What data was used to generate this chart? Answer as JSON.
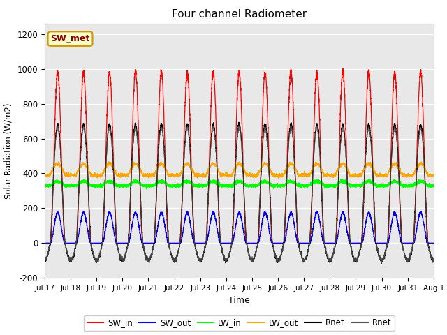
{
  "title": "Four channel Radiometer",
  "xlabel": "Time",
  "ylabel": "Solar Radiation (W/m2)",
  "ylim": [
    -200,
    1260
  ],
  "yticks": [
    -200,
    0,
    200,
    400,
    600,
    800,
    1000,
    1200
  ],
  "x_labels": [
    "Jul 17",
    "Jul 18",
    "Jul 19",
    "Jul 20",
    "Jul 21",
    "Jul 22",
    "Jul 23",
    "Jul 24",
    "Jul 25",
    "Jul 26",
    "Jul 27",
    "Jul 28",
    "Jul 29",
    "Jul 30",
    "Jul 31",
    "Aug 1"
  ],
  "annotation": "SW_met",
  "fig_bg": "#ffffff",
  "plot_bg": "#e8e8e8",
  "grid_color": "#ffffff",
  "legend_colors": [
    "red",
    "blue",
    "lime",
    "orange",
    "black",
    "#555555"
  ],
  "legend_labels": [
    "SW_in",
    "SW_out",
    "LW_in",
    "LW_out",
    "Rnet",
    "Rnet"
  ],
  "n_days": 15,
  "sw_in_peak": 980,
  "sw_out_peak": 175,
  "lw_in_base": 330,
  "lw_in_amp": 25,
  "lw_out_base": 390,
  "lw_out_amp": 65,
  "rnet_peak": 680,
  "rnet_night": -100,
  "seed": 42
}
